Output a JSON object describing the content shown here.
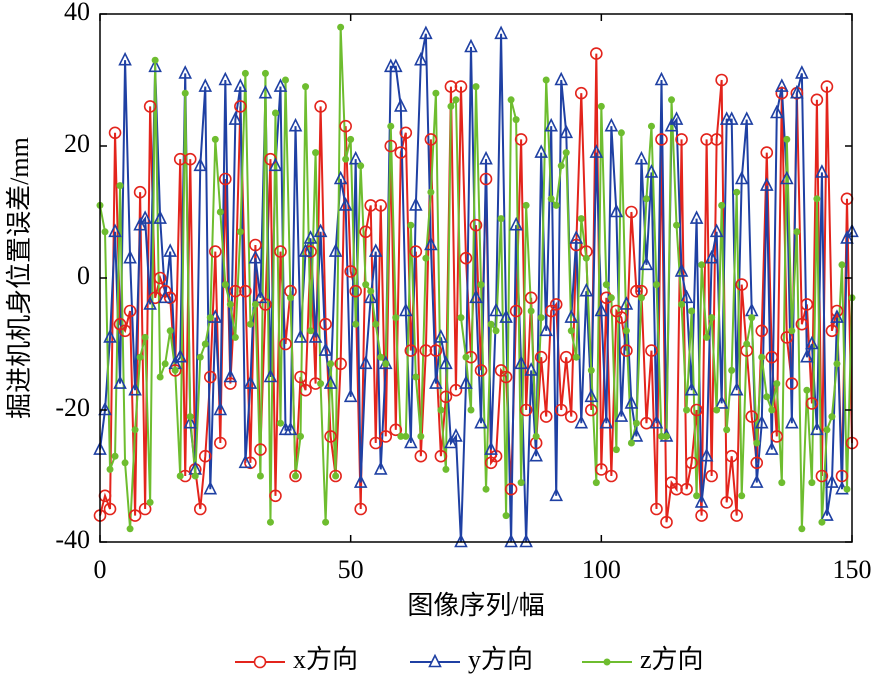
{
  "chart_data": {
    "type": "line",
    "xlabel": "图像序列/幅",
    "ylabel": "掘进机机身位置误差/mm",
    "xlim": [
      0,
      150
    ],
    "xticks": [
      0,
      50,
      100,
      150
    ],
    "ylim": [
      -40,
      40
    ],
    "yticks": [
      -40,
      -20,
      0,
      20,
      40
    ],
    "x": [
      0,
      1,
      2,
      3,
      4,
      5,
      6,
      7,
      8,
      9,
      10,
      11,
      12,
      13,
      14,
      15,
      16,
      17,
      18,
      19,
      20,
      21,
      22,
      23,
      24,
      25,
      26,
      27,
      28,
      29,
      30,
      31,
      32,
      33,
      34,
      35,
      36,
      37,
      38,
      39,
      40,
      41,
      42,
      43,
      44,
      45,
      46,
      47,
      48,
      49,
      50,
      51,
      52,
      53,
      54,
      55,
      56,
      57,
      58,
      59,
      60,
      61,
      62,
      63,
      64,
      65,
      66,
      67,
      68,
      69,
      70,
      71,
      72,
      73,
      74,
      75,
      76,
      77,
      78,
      79,
      80,
      81,
      82,
      83,
      84,
      85,
      86,
      87,
      88,
      89,
      90,
      91,
      92,
      93,
      94,
      95,
      96,
      97,
      98,
      99,
      100,
      101,
      102,
      103,
      104,
      105,
      106,
      107,
      108,
      109,
      110,
      111,
      112,
      113,
      114,
      115,
      116,
      117,
      118,
      119,
      120,
      121,
      122,
      123,
      124,
      125,
      126,
      127,
      128,
      129,
      130,
      131,
      132,
      133,
      134,
      135,
      136,
      137,
      138,
      139,
      140,
      141,
      142,
      143,
      144,
      145,
      146,
      147,
      148,
      149,
      150
    ],
    "series": [
      {
        "name": "x方向",
        "color": "#e3241c",
        "marker": "circle",
        "values": [
          -36,
          -33,
          -35,
          22,
          -7,
          -8,
          -5,
          -36,
          13,
          -35,
          26,
          -3,
          0,
          -2,
          -3,
          -14,
          18,
          -30,
          18,
          -29,
          -35,
          -27,
          -15,
          4,
          -25,
          15,
          -16,
          -2,
          26,
          -2,
          -28,
          5,
          -26,
          -4,
          18,
          -33,
          4,
          -10,
          -2,
          -30,
          -15,
          -17,
          4,
          -16,
          26,
          -7,
          -24,
          -30,
          -13,
          23,
          1,
          -2,
          -35,
          7,
          11,
          -25,
          11,
          -24,
          20,
          -23,
          19,
          22,
          -11,
          4,
          -27,
          -11,
          21,
          -11,
          -27,
          -18,
          29,
          -17,
          29,
          3,
          -12,
          8,
          -14,
          15,
          -28,
          -27,
          -14,
          -15,
          -32,
          -5,
          21,
          -20,
          -3,
          -25,
          -12,
          -21,
          -5,
          -4,
          -20,
          -12,
          -21,
          5,
          28,
          4,
          -20,
          34,
          -29,
          -3,
          -30,
          -5,
          -6,
          -11,
          10,
          -2,
          -2,
          -22,
          -11,
          -35,
          21,
          -37,
          -31,
          -32,
          21,
          -32,
          -28,
          -20,
          -36,
          21,
          -30,
          21,
          30,
          -34,
          -27,
          -36,
          -1,
          -11,
          -21,
          -28,
          -8,
          19,
          -12,
          -24,
          28,
          -9,
          -16,
          28,
          -7,
          -4,
          -19,
          27,
          -30,
          29,
          -8,
          -5,
          -30,
          12,
          -25
        ]
      },
      {
        "name": "y方向",
        "color": "#1f40a3",
        "marker": "triangle",
        "values": [
          -26,
          -20,
          -9,
          7,
          -16,
          33,
          3,
          -17,
          8,
          9,
          -4,
          32,
          9,
          -3,
          4,
          -13,
          -12,
          31,
          -22,
          -29,
          17,
          29,
          -32,
          -6,
          -20,
          30,
          -15,
          24,
          29,
          -28,
          -16,
          3,
          -3,
          28,
          -15,
          17,
          29,
          -23,
          -23,
          23,
          -9,
          4,
          6,
          -9,
          7,
          -11,
          -16,
          4,
          15,
          11,
          -18,
          18,
          -31,
          -13,
          -3,
          4,
          -29,
          -13,
          32,
          32,
          26,
          -5,
          -25,
          11,
          33,
          37,
          5,
          -16,
          -9,
          -13,
          -25,
          -24,
          -40,
          -16,
          35,
          -3,
          -22,
          18,
          -26,
          -5,
          37,
          -6,
          -40,
          8,
          -13,
          -40,
          -14,
          -27,
          19,
          -8,
          23,
          -33,
          30,
          22,
          -6,
          6,
          -22,
          -2,
          -18,
          19,
          -5,
          -22,
          23,
          10,
          -21,
          -4,
          -19,
          -24,
          18,
          2,
          16,
          -22,
          30,
          -24,
          23,
          24,
          1,
          -3,
          -17,
          9,
          -34,
          -27,
          3,
          7,
          -19,
          24,
          24,
          -17,
          15,
          24,
          -5,
          -31,
          -22,
          14,
          -26,
          25,
          29,
          15,
          -22,
          28,
          31,
          -12,
          -10,
          -23,
          16,
          -36,
          -31,
          -6,
          -32,
          6,
          7
        ]
      },
      {
        "name": "z方向",
        "color": "#6ebd2f",
        "marker": "dot",
        "values": [
          11,
          7,
          -29,
          -27,
          14,
          -28,
          -38,
          -23,
          -12,
          -9,
          -34,
          33,
          -15,
          -13,
          -8,
          -14,
          -30,
          28,
          -21,
          -30,
          -12,
          -10,
          -6,
          21,
          10,
          -1,
          -4,
          -9,
          7,
          31,
          -7,
          -4,
          -30,
          31,
          -37,
          25,
          -22,
          30,
          -3,
          -30,
          -24,
          29,
          -8,
          19,
          -16,
          -37,
          -13,
          -30,
          38,
          18,
          21,
          -7,
          17,
          -1,
          -2,
          -7,
          -12,
          -13,
          23,
          -6,
          -24,
          -24,
          8,
          -15,
          -24,
          3,
          13,
          28,
          -20,
          -29,
          26,
          27,
          -6,
          -12,
          -20,
          29,
          -1,
          -32,
          -7,
          -8,
          9,
          -36,
          27,
          24,
          -31,
          11,
          -5,
          -24,
          -6,
          30,
          12,
          11,
          17,
          19,
          -8,
          -12,
          9,
          3,
          -14,
          -31,
          26,
          -1,
          -3,
          -26,
          22,
          -8,
          -25,
          -22,
          -3,
          12,
          23,
          -1,
          -24,
          -24,
          27,
          8,
          -4,
          -20,
          -5,
          -33,
          2,
          -9,
          -6,
          -20,
          11,
          -23,
          -14,
          13,
          -33,
          -10,
          -6,
          -25,
          -12,
          -18,
          -20,
          -16,
          -31,
          21,
          -8,
          7,
          -38,
          -17,
          -31,
          12,
          -37,
          -23,
          -21,
          -13,
          2,
          -32,
          -3
        ]
      }
    ]
  }
}
